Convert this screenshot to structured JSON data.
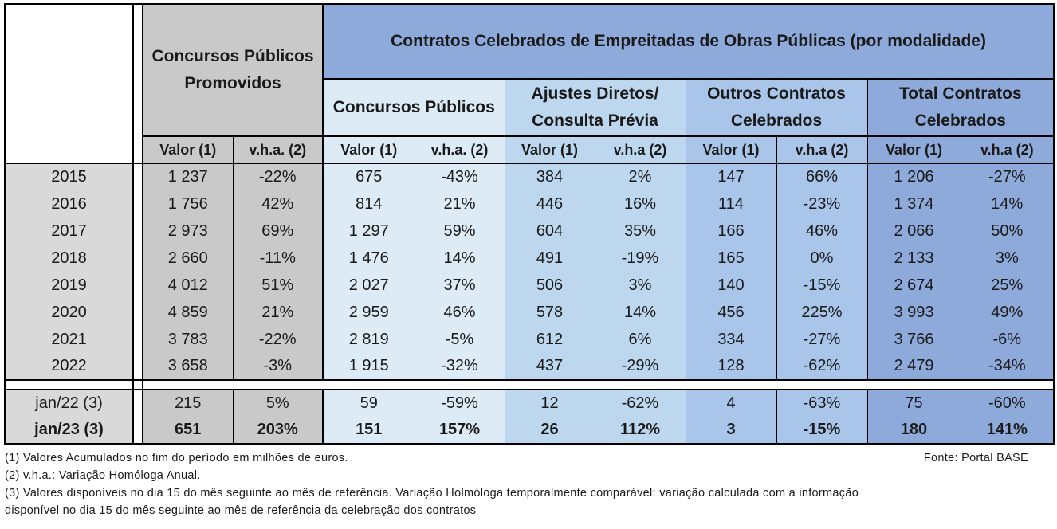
{
  "headers": {
    "col_concursos_promovidos": "Concursos Públicos Promovidos",
    "contratos_title": "Contratos Celebrados de Empreitadas de Obras Públicas (por modalidade)",
    "col_concursos_publicos": "Concursos Públicos",
    "col_ajustes_line1": "Ajustes Diretos/",
    "col_ajustes_line2": "Consulta Prévia",
    "col_outros_line1": "Outros Contratos",
    "col_outros_line2": "Celebrados",
    "col_total_line1": "Total Contratos",
    "col_total_line2": "Celebrados",
    "sub": [
      "Valor (1)",
      "v.h.a. (2)",
      "Valor (1)",
      "v.h.a. (2)",
      "Valor (1)",
      "v.h.a (2)",
      "Valor (1)",
      "v.h.a (2)",
      "Valor (1)",
      "v.h.a (2)"
    ]
  },
  "rows": [
    {
      "label": "2015",
      "v": [
        "1 237",
        "-22%",
        "675",
        "-43%",
        "384",
        "2%",
        "147",
        "66%",
        "1 206",
        "-27%"
      ]
    },
    {
      "label": "2016",
      "v": [
        "1 756",
        "42%",
        "814",
        "21%",
        "446",
        "16%",
        "114",
        "-23%",
        "1 374",
        "14%"
      ]
    },
    {
      "label": "2017",
      "v": [
        "2 973",
        "69%",
        "1 297",
        "59%",
        "604",
        "35%",
        "166",
        "46%",
        "2 066",
        "50%"
      ]
    },
    {
      "label": "2018",
      "v": [
        "2 660",
        "-11%",
        "1 476",
        "14%",
        "491",
        "-19%",
        "165",
        "0%",
        "2 133",
        "3%"
      ]
    },
    {
      "label": "2019",
      "v": [
        "4 012",
        "51%",
        "2 027",
        "37%",
        "506",
        "3%",
        "140",
        "-15%",
        "2 674",
        "25%"
      ]
    },
    {
      "label": "2020",
      "v": [
        "4 859",
        "21%",
        "2 959",
        "46%",
        "578",
        "14%",
        "456",
        "225%",
        "3 993",
        "49%"
      ]
    },
    {
      "label": "2021",
      "v": [
        "3 783",
        "-22%",
        "2 819",
        "-5%",
        "612",
        "6%",
        "334",
        "-27%",
        "3 766",
        "-6%"
      ]
    },
    {
      "label": "2022",
      "v": [
        "3 658",
        "-3%",
        "1 915",
        "-32%",
        "437",
        "-29%",
        "128",
        "-62%",
        "2 479",
        "-34%"
      ]
    }
  ],
  "monthly": [
    {
      "label": "jan/22 (3)",
      "v": [
        "215",
        "5%",
        "59",
        "-59%",
        "12",
        "-62%",
        "4",
        "-63%",
        "75",
        "-60%"
      ]
    },
    {
      "label": "jan/23 (3)",
      "v": [
        "651",
        "203%",
        "151",
        "157%",
        "26",
        "112%",
        "3",
        "-15%",
        "180",
        "141%"
      ]
    }
  ],
  "notes": [
    "(1) Valores Acumulados no fim do período em milhões de euros.",
    "(2) v.h.a.: Variação Homóloga Anual.",
    "(3) Valores disponíveis no dia 15 do mês seguinte ao mês de referência. Variação Holmóloga temporalmente comparável: variação calculada com a informação",
    "disponível no dia 15 do mês  seguinte ao mês de referência da celebração dos contratos"
  ],
  "source": "Fonte: Portal BASE"
}
